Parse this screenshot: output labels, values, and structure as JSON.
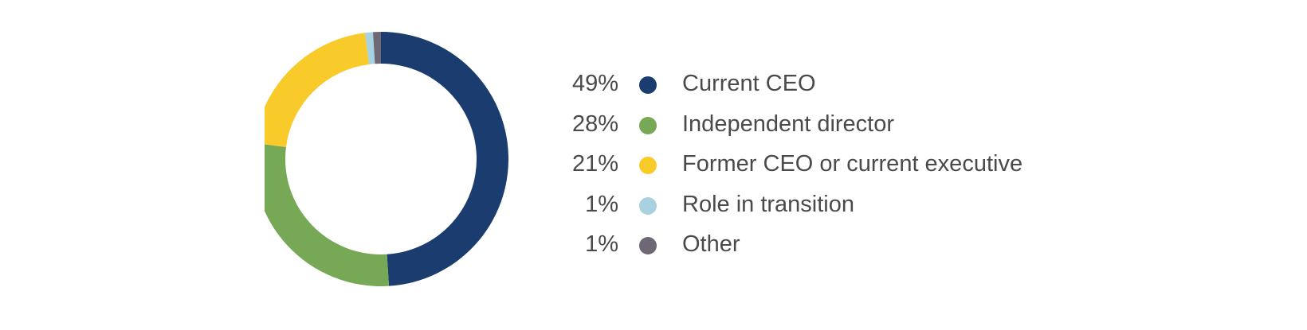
{
  "chart_data": {
    "type": "pie",
    "style": "donut",
    "title": "",
    "categories": [
      "Current CEO",
      "Independent director",
      "Former CEO or current executive",
      "Role in transition",
      "Other"
    ],
    "values": [
      49,
      28,
      21,
      1,
      1
    ],
    "value_labels": [
      "49%",
      "28%",
      "21%",
      "1%",
      "1%"
    ],
    "colors": [
      "#1a3c6e",
      "#76a856",
      "#f8ca2a",
      "#a8d2df",
      "#6d6873"
    ],
    "legend_position": "right",
    "start": "12 o'clock",
    "direction": "clockwise"
  }
}
